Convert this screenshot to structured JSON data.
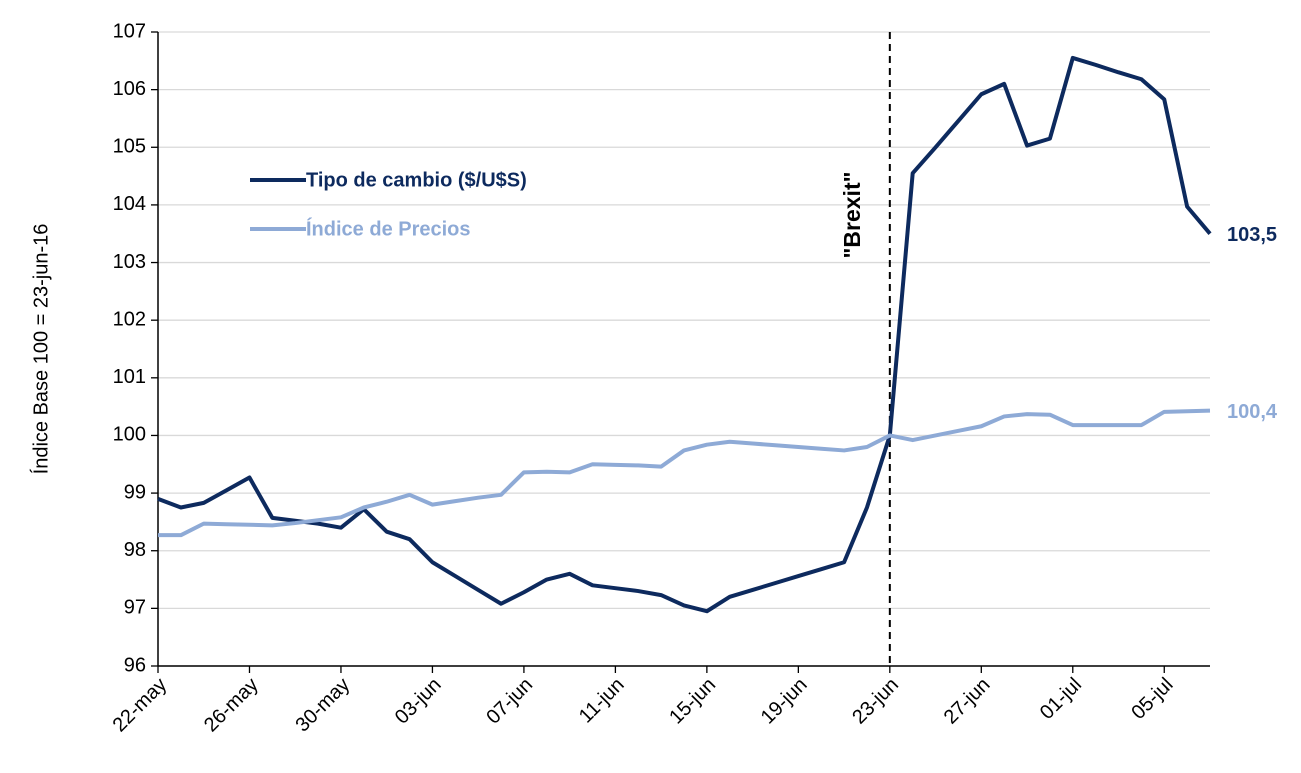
{
  "chart_data": {
    "type": "line",
    "y_label": "Índice Base 100 = 23-jun-16",
    "categories": [
      "22-may",
      null,
      null,
      null,
      "26-may",
      null,
      null,
      null,
      "30-may",
      null,
      null,
      null,
      "03-jun",
      null,
      null,
      null,
      "07-jun",
      null,
      null,
      null,
      "11-jun",
      null,
      null,
      null,
      "15-jun",
      null,
      null,
      null,
      "19-jun",
      null,
      null,
      null,
      "23-jun",
      null,
      null,
      null,
      "27-jun",
      null,
      null,
      null,
      "01-jul",
      null,
      null,
      null,
      "05-jul",
      null,
      null
    ],
    "series": [
      {
        "name": "Tipo de cambio ($/U$S)",
        "color": "#0d2a5e",
        "end_label": "103,5",
        "values": [
          98.9,
          98.75,
          98.83,
          99.05,
          99.27,
          98.57,
          98.52,
          98.47,
          98.4,
          98.72,
          98.33,
          98.2,
          97.8,
          97.56,
          97.32,
          97.08,
          97.28,
          97.5,
          97.6,
          97.4,
          97.35,
          97.3,
          97.23,
          97.05,
          96.95,
          97.2,
          97.32,
          97.44,
          97.56,
          97.68,
          97.8,
          98.75,
          100,
          104.55,
          105.0,
          105.46,
          105.92,
          106.1,
          105.03,
          105.15,
          106.55,
          106.43,
          106.3,
          106.18,
          105.83,
          103.97,
          103.5
        ]
      },
      {
        "name": "Índice de Precios",
        "color": "#8eaad6",
        "end_label": "100,4",
        "values": [
          98.27,
          98.27,
          98.47,
          98.46,
          98.45,
          98.44,
          98.48,
          98.53,
          98.58,
          98.75,
          98.85,
          98.97,
          98.8,
          98.86,
          98.92,
          98.97,
          99.36,
          99.37,
          99.36,
          99.5,
          99.49,
          99.48,
          99.46,
          99.74,
          99.84,
          99.89,
          99.86,
          99.83,
          99.8,
          99.77,
          99.74,
          99.8,
          100,
          99.92,
          100.0,
          100.08,
          100.16,
          100.33,
          100.37,
          100.36,
          100.18,
          100.18,
          100.18,
          100.18,
          100.41,
          100.42,
          100.43
        ]
      }
    ],
    "annotations": [
      {
        "text": "\"Brexit\"",
        "x": "23-jun"
      }
    ],
    "ylim": [
      96,
      107
    ],
    "yticks": [
      96,
      97,
      98,
      99,
      100,
      101,
      102,
      103,
      104,
      105,
      106,
      107
    ],
    "grid": true,
    "legend": "upper left"
  }
}
